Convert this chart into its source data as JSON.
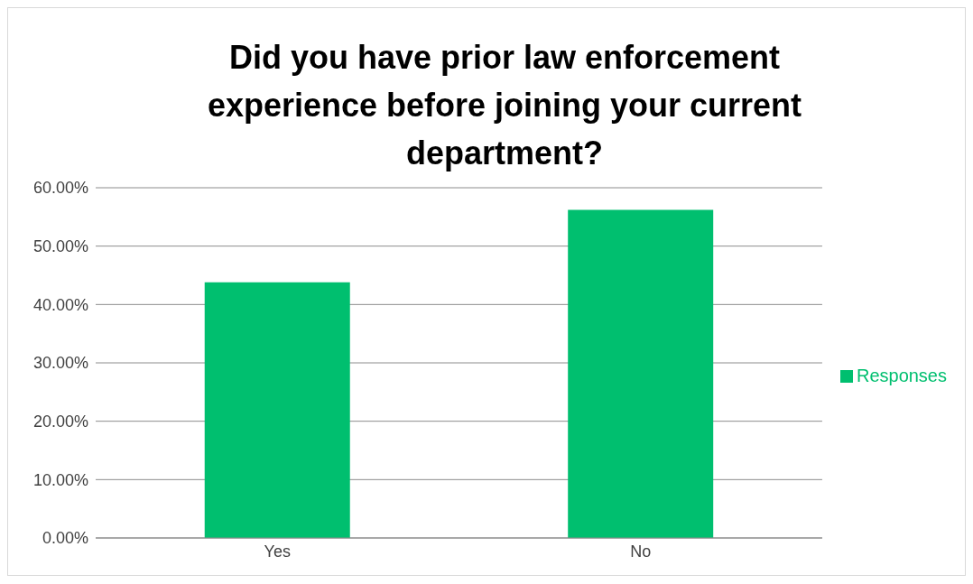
{
  "chart_data": {
    "type": "bar",
    "title": "Did you have prior law enforcement experience before joining your current department?",
    "categories": [
      "Yes",
      "No"
    ],
    "series": [
      {
        "name": "Responses",
        "color": "#00bf6f",
        "values": [
          43.8,
          56.2
        ]
      }
    ],
    "ylim": [
      0,
      60
    ],
    "yticks": [
      {
        "value": 0,
        "label": "0.00%"
      },
      {
        "value": 10,
        "label": "10.00%"
      },
      {
        "value": 20,
        "label": "20.00%"
      },
      {
        "value": 30,
        "label": "30.00%"
      },
      {
        "value": 40,
        "label": "40.00%"
      },
      {
        "value": 50,
        "label": "50.00%"
      },
      {
        "value": 60,
        "label": "60.00%"
      }
    ],
    "grid": "y",
    "legend": "right"
  }
}
